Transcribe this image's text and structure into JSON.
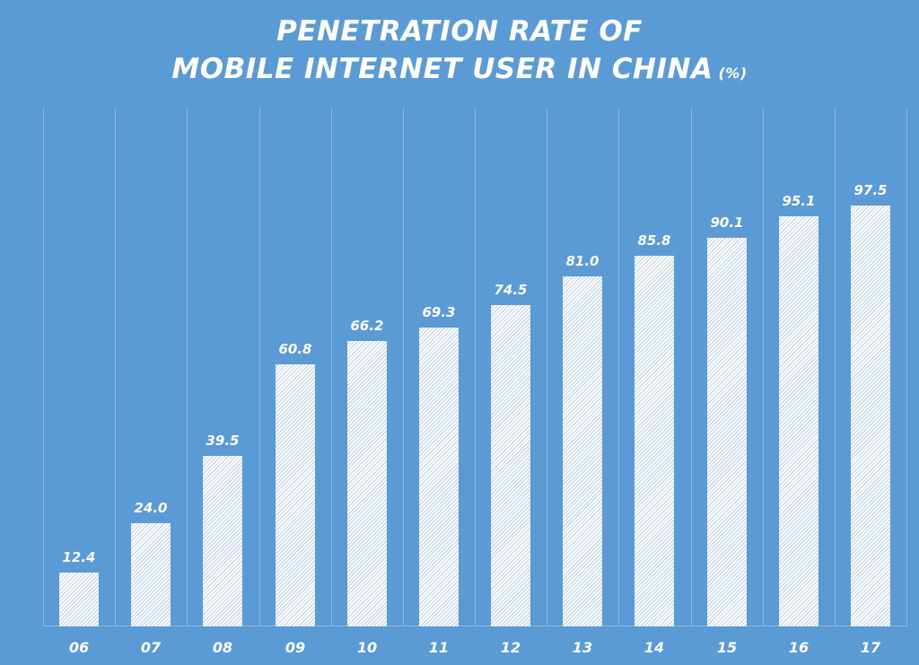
{
  "title": {
    "line1": "PENETRATION RATE OF",
    "line2": "MOBILE INTERNET USER IN CHINA",
    "unit": "(%)"
  },
  "colors": {
    "background": "#5b9bd5",
    "bar": "#ffffff",
    "text": "#ffffff",
    "grid": "#8ab8e6"
  },
  "chart_data": {
    "type": "bar",
    "title": "PENETRATION RATE OF MOBILE INTERNET USER IN CHINA (%)",
    "xlabel": "",
    "ylabel": "",
    "categories": [
      "06",
      "07",
      "08",
      "09",
      "10",
      "11",
      "12",
      "13",
      "14",
      "15",
      "16",
      "17"
    ],
    "values": [
      12.4,
      24.0,
      39.5,
      60.8,
      66.2,
      69.3,
      74.5,
      81.0,
      85.8,
      90.1,
      95.1,
      97.5
    ],
    "value_labels": [
      "12.4",
      "24.0",
      "39.5",
      "60.8",
      "66.2",
      "69.3",
      "74.5",
      "81.0",
      "85.8",
      "90.1",
      "95.1",
      "97.5"
    ],
    "ylim": [
      0,
      120
    ],
    "grid": "vertical separators between categories",
    "legend": "none",
    "bar_fill": "white with diagonal hatching"
  }
}
